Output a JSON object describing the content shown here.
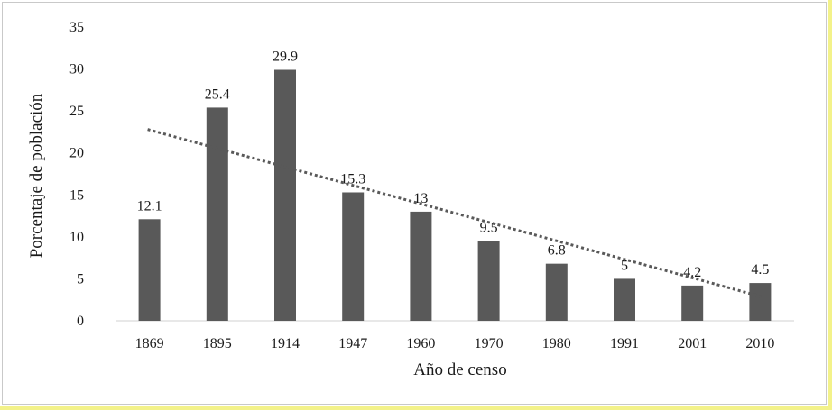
{
  "chart_data": {
    "type": "bar",
    "categories": [
      "1869",
      "1895",
      "1914",
      "1947",
      "1960",
      "1970",
      "1980",
      "1991",
      "2001",
      "2010"
    ],
    "values": [
      12.1,
      25.4,
      29.9,
      15.3,
      13,
      9.5,
      6.8,
      5,
      4.2,
      4.5
    ],
    "data_labels": [
      "12.1",
      "25.4",
      "29.9",
      "15.3",
      "13",
      "9.5",
      "6.8",
      "5",
      "4.2",
      "4.5"
    ],
    "xlabel": "Año de censo",
    "ylabel": "Porcentaje de población",
    "ylim": [
      0,
      35
    ],
    "yticks": [
      0,
      5,
      10,
      15,
      20,
      25,
      30,
      35
    ],
    "trendline": {
      "type": "linear",
      "style": "dotted",
      "start": 22.8,
      "end": 2.8
    },
    "grid": false,
    "legend": "none",
    "colors": {
      "bar": "#595959",
      "trendline": "#595959",
      "axis": "#d0d0d0",
      "border_accent": "#f3f28a"
    }
  }
}
